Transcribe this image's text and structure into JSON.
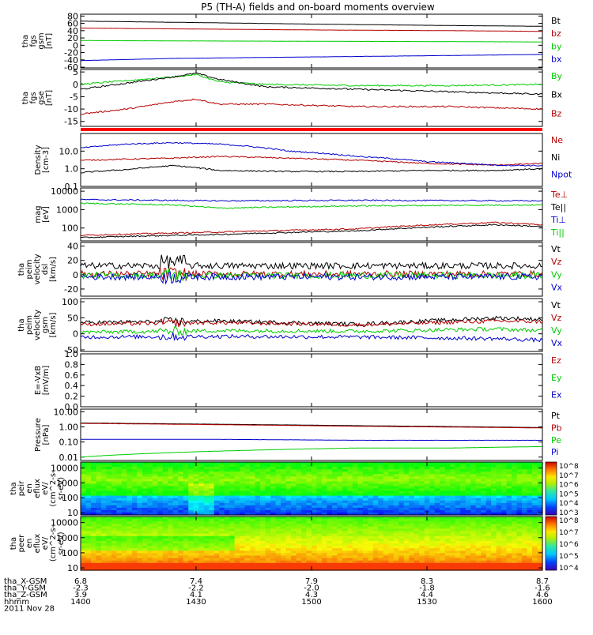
{
  "title": "P5 (TH-A) fields and on-board moments overview",
  "colors": {
    "black": "#000000",
    "red": "#b40000",
    "green": "#00cc00",
    "blue": "#0000cc",
    "bright_red": "#ff0000",
    "mid_green": "#22dd22"
  },
  "footer": {
    "labels": [
      "tha_X-GSM",
      "tha_Y-GSM",
      "tha_Z-GSM",
      "hhmm",
      "2011 Nov 28"
    ],
    "columns": [
      {
        "x": "6.8",
        "y": "-2.3",
        "z": "3.9",
        "t": "1400"
      },
      {
        "x": "7.4",
        "y": "-2.2",
        "z": "4.1",
        "t": "1430"
      },
      {
        "x": "7.9",
        "y": "-2.0",
        "z": "4.3",
        "t": "1500"
      },
      {
        "x": "8.3",
        "y": "-1.8",
        "z": "4.4",
        "t": "1530"
      },
      {
        "x": "8.7",
        "y": "-1.6",
        "z": "4.6",
        "t": "1600"
      }
    ]
  },
  "chart_data": [
    {
      "type": "line",
      "name": "fgs_gsm",
      "ylabel": [
        "tha",
        "fgs",
        "gsm",
        "[nT]"
      ],
      "yticks": [
        "80",
        "60",
        "40",
        "20",
        "0",
        "-20",
        "-40",
        "-60"
      ],
      "ylim": [
        -62,
        85
      ],
      "legend": [
        {
          "label": "Bt",
          "color": "black"
        },
        {
          "label": "bz",
          "color": "red"
        },
        {
          "label": "by",
          "color": "green"
        },
        {
          "label": "bx",
          "color": "blue"
        }
      ],
      "series": [
        {
          "name": "Bt",
          "color": "black",
          "x": [
            0,
            0.2,
            0.5,
            0.8,
            1
          ],
          "y": [
            66,
            63,
            58,
            54,
            52
          ]
        },
        {
          "name": "bz",
          "color": "red",
          "x": [
            0,
            0.2,
            0.5,
            0.8,
            1
          ],
          "y": [
            47,
            45,
            42,
            40,
            38
          ]
        },
        {
          "name": "by",
          "color": "green",
          "x": [
            0,
            0.2,
            0.5,
            0.8,
            1
          ],
          "y": [
            13,
            12,
            11,
            10,
            9
          ]
        },
        {
          "name": "bx",
          "color": "blue",
          "x": [
            0,
            0.2,
            0.5,
            0.8,
            1
          ],
          "y": [
            -42,
            -36,
            -32,
            -28,
            -25
          ]
        }
      ]
    },
    {
      "type": "line",
      "name": "fgs_gse",
      "ylabel": [
        "tha",
        "fgs",
        "gse",
        "[nT]"
      ],
      "yticks": [
        "5",
        "0",
        "-5",
        "-10",
        "-15"
      ],
      "ylim": [
        -17,
        6
      ],
      "legend": [
        {
          "label": "By",
          "color": "green"
        },
        {
          "label": "Bx",
          "color": "black"
        },
        {
          "label": "Bz",
          "color": "red"
        }
      ],
      "series": [
        {
          "name": "By",
          "color": "green",
          "x": [
            0,
            0.1,
            0.2,
            0.25,
            0.3,
            0.4,
            0.6,
            0.8,
            1
          ],
          "y": [
            0,
            1.5,
            3,
            4,
            1,
            0,
            -0.5,
            -0.5,
            0
          ]
        },
        {
          "name": "Bx",
          "color": "black",
          "x": [
            0,
            0.1,
            0.2,
            0.25,
            0.3,
            0.4,
            0.6,
            0.8,
            1
          ],
          "y": [
            -2,
            0.5,
            3,
            4.5,
            2,
            -1,
            -2,
            -3,
            -4
          ]
        },
        {
          "name": "Bz",
          "color": "red",
          "x": [
            0,
            0.1,
            0.2,
            0.25,
            0.3,
            0.4,
            0.6,
            0.8,
            1
          ],
          "y": [
            -12,
            -10,
            -7,
            -6,
            -8,
            -8,
            -9,
            -9,
            -10
          ]
        }
      ]
    },
    {
      "type": "bar",
      "name": "mode_strip",
      "values": [
        1
      ],
      "color": "bright_red"
    },
    {
      "type": "line",
      "name": "density",
      "log": true,
      "ylabel": [
        "Density",
        "[cm-3]"
      ],
      "yticks": [
        "10.0",
        "1.0",
        "0.1"
      ],
      "ylim": [
        0.1,
        100
      ],
      "legend": [
        {
          "label": "Ne",
          "color": "red"
        },
        {
          "label": "Ni",
          "color": "black"
        },
        {
          "label": "Npot",
          "color": "blue"
        }
      ],
      "series": [
        {
          "name": "Ne",
          "color": "red",
          "x": [
            0,
            0.1,
            0.2,
            0.3,
            0.45,
            0.6,
            0.75,
            0.9,
            1
          ],
          "y": [
            3,
            3.5,
            4,
            5,
            4,
            3,
            2,
            1.6,
            2
          ]
        },
        {
          "name": "Ni",
          "color": "black",
          "x": [
            0,
            0.1,
            0.2,
            0.3,
            0.45,
            0.6,
            0.75,
            0.9,
            1
          ],
          "y": [
            0.6,
            0.9,
            1.5,
            0.8,
            0.7,
            0.7,
            0.8,
            0.8,
            1
          ]
        },
        {
          "name": "Npot",
          "color": "blue",
          "x": [
            0,
            0.1,
            0.2,
            0.3,
            0.45,
            0.6,
            0.75,
            0.9,
            1
          ],
          "y": [
            15,
            25,
            30,
            25,
            10,
            5,
            2.5,
            1.6,
            1.5
          ]
        }
      ]
    },
    {
      "type": "line",
      "name": "temperature",
      "log": true,
      "ylabel": [
        "mag",
        "[eV]"
      ],
      "yticks": [
        "10000",
        "1000",
        "100"
      ],
      "ylim": [
        20,
        15000
      ],
      "legend": [
        {
          "label": "Te⊥",
          "color": "red"
        },
        {
          "label": "Te||",
          "color": "black"
        },
        {
          "label": "Ti⊥",
          "color": "blue"
        },
        {
          "label": "Ti||",
          "color": "green"
        }
      ],
      "series": [
        {
          "name": "Ti⊥",
          "color": "blue",
          "x": [
            0,
            0.3,
            0.6,
            1
          ],
          "y": [
            3500,
            3000,
            3200,
            3000
          ]
        },
        {
          "name": "Ti||",
          "color": "green",
          "x": [
            0,
            0.2,
            0.3,
            0.6,
            1
          ],
          "y": [
            2200,
            1800,
            1200,
            1600,
            1800
          ]
        },
        {
          "name": "Te⊥",
          "color": "red",
          "x": [
            0,
            0.3,
            0.6,
            0.9,
            1
          ],
          "y": [
            40,
            60,
            90,
            200,
            150
          ]
        },
        {
          "name": "Te||",
          "color": "black",
          "x": [
            0,
            0.3,
            0.6,
            0.9,
            1
          ],
          "y": [
            30,
            45,
            70,
            150,
            120
          ]
        }
      ]
    },
    {
      "type": "line",
      "name": "velocity_dsl",
      "ylabel": [
        "tha",
        "peim",
        "velocity",
        "dsl",
        "[km/s]"
      ],
      "yticks": [
        "40",
        "20",
        "0",
        "-20"
      ],
      "ylim": [
        -30,
        45
      ],
      "legend": [
        {
          "label": "Vt",
          "color": "black"
        },
        {
          "label": "Vz",
          "color": "red"
        },
        {
          "label": "Vy",
          "color": "green"
        },
        {
          "label": "Vx",
          "color": "blue"
        }
      ],
      "series": [
        {
          "name": "Vt",
          "color": "black",
          "x": [
            0,
            1
          ],
          "y": [
            8,
            8
          ]
        },
        {
          "name": "Vz",
          "color": "red",
          "x": [
            0,
            1
          ],
          "y": [
            1,
            1
          ]
        },
        {
          "name": "Vy",
          "color": "green",
          "x": [
            0,
            1
          ],
          "y": [
            -1,
            -1
          ]
        },
        {
          "name": "Vx",
          "color": "blue",
          "x": [
            0,
            1
          ],
          "y": [
            -3,
            -3
          ]
        }
      ]
    },
    {
      "type": "line",
      "name": "velocity_gsm",
      "ylabel": [
        "tha",
        "peim",
        "velocity",
        "gsm",
        "[km/s]"
      ],
      "yticks": [
        "100",
        "50",
        "0",
        "-50"
      ],
      "ylim": [
        -55,
        110
      ],
      "legend": [
        {
          "label": "Vt",
          "color": "black"
        },
        {
          "label": "Vz",
          "color": "red"
        },
        {
          "label": "Vy",
          "color": "green"
        },
        {
          "label": "Vx",
          "color": "blue"
        }
      ],
      "series": [
        {
          "name": "Vt",
          "color": "black",
          "x": [
            0,
            0.3,
            0.6,
            0.9,
            1
          ],
          "y": [
            35,
            40,
            30,
            50,
            45
          ]
        },
        {
          "name": "Vz",
          "color": "red",
          "x": [
            0,
            0.3,
            0.6,
            0.9,
            1
          ],
          "y": [
            30,
            35,
            28,
            40,
            38
          ]
        },
        {
          "name": "Vy",
          "color": "green",
          "x": [
            0,
            0.3,
            0.6,
            0.9,
            1
          ],
          "y": [
            5,
            10,
            8,
            15,
            10
          ]
        },
        {
          "name": "Vx",
          "color": "blue",
          "x": [
            0,
            0.3,
            0.6,
            0.9,
            1
          ],
          "y": [
            -10,
            -8,
            -10,
            -15,
            -20
          ]
        }
      ]
    },
    {
      "type": "line",
      "name": "efield",
      "ylabel": [
        "E=-VxB",
        "[mV/m]"
      ],
      "yticks": [
        "1.0",
        "0.8",
        "0.6",
        "0.4",
        "0.2",
        "0.0"
      ],
      "ylim": [
        0,
        1
      ],
      "legend": [
        {
          "label": "Ez",
          "color": "red"
        },
        {
          "label": "Ey",
          "color": "green"
        },
        {
          "label": "Ex",
          "color": "blue"
        }
      ],
      "series": []
    },
    {
      "type": "line",
      "name": "pressure",
      "log": true,
      "ylabel": [
        "Pressure",
        "[nPa]"
      ],
      "yticks": [
        "10.00",
        "1.00",
        "0.10",
        "0.01"
      ],
      "ylim": [
        0.006,
        15
      ],
      "legend": [
        {
          "label": "Pt",
          "color": "black"
        },
        {
          "label": "Pb",
          "color": "red"
        },
        {
          "label": "Pe",
          "color": "green"
        },
        {
          "label": "Pi",
          "color": "blue"
        }
      ],
      "series": [
        {
          "name": "Pt",
          "color": "black",
          "x": [
            0,
            0.3,
            0.6,
            1
          ],
          "y": [
            1.8,
            1.5,
            1.2,
            0.9
          ]
        },
        {
          "name": "Pb",
          "color": "red",
          "x": [
            0,
            0.3,
            0.6,
            1
          ],
          "y": [
            1.7,
            1.4,
            1.1,
            0.85
          ]
        },
        {
          "name": "Pi",
          "color": "blue",
          "x": [
            0,
            0.3,
            0.6,
            1
          ],
          "y": [
            0.15,
            0.15,
            0.13,
            0.13
          ]
        },
        {
          "name": "Pe",
          "color": "green",
          "x": [
            0,
            0.2,
            0.4,
            0.6,
            0.8,
            1
          ],
          "y": [
            0.01,
            0.02,
            0.03,
            0.04,
            0.04,
            0.05
          ]
        }
      ]
    },
    {
      "type": "heatmap",
      "name": "peir_en_eflux",
      "log": true,
      "ylabel": [
        "tha",
        "peir",
        "en",
        "eflux",
        "eV/",
        "(cm^2-s-",
        "sr-eV)"
      ],
      "yticks": [
        "10000",
        "1000",
        "100",
        "10"
      ],
      "ylim": [
        7,
        25000
      ],
      "colorbar_ticks": [
        "10^8",
        "10^7",
        "10^6",
        "10^5",
        "10^4",
        "10^3"
      ]
    },
    {
      "type": "heatmap",
      "name": "peer_en_eflux",
      "log": true,
      "ylabel": [
        "tha",
        "peer",
        "en",
        "eflux",
        "eV/",
        "(cm^2-s-",
        "sr-eV)"
      ],
      "yticks": [
        "10000",
        "1000",
        "100",
        "10"
      ],
      "ylim": [
        7,
        25000
      ],
      "colorbar_ticks": [
        "10^8",
        "10^7",
        "10^6",
        "10^5",
        "10^4"
      ]
    }
  ]
}
